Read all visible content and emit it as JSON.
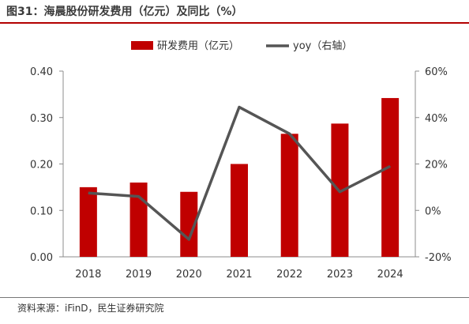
{
  "figure": {
    "title": "图31：海晨股份研发费用（亿元）及同比（%）",
    "source": "资料来源：iFinD，民生证券研究院"
  },
  "chart_data": {
    "type": "bar",
    "categories": [
      "2018",
      "2019",
      "2020",
      "2021",
      "2022",
      "2023",
      "2024"
    ],
    "series": [
      {
        "name": "研发费用（亿元）",
        "type": "bar",
        "axis": "left",
        "values": [
          0.15,
          0.16,
          0.14,
          0.2,
          0.265,
          0.287,
          0.342
        ],
        "color": "#c00000"
      },
      {
        "name": "yoy（右轴）",
        "type": "line",
        "axis": "right",
        "values": [
          7.5,
          6.0,
          -12.5,
          44.5,
          33.0,
          8.0,
          19.0
        ],
        "color": "#555555"
      }
    ],
    "y_left": {
      "ylim": [
        0,
        0.4
      ],
      "ticks": [
        "0.00",
        "0.10",
        "0.20",
        "0.30",
        "0.40"
      ]
    },
    "y_right": {
      "ylim": [
        -20,
        60
      ],
      "ticks": [
        "-20%",
        "0%",
        "20%",
        "40%",
        "60%"
      ]
    },
    "legend_position": "top-center",
    "grid": false
  }
}
